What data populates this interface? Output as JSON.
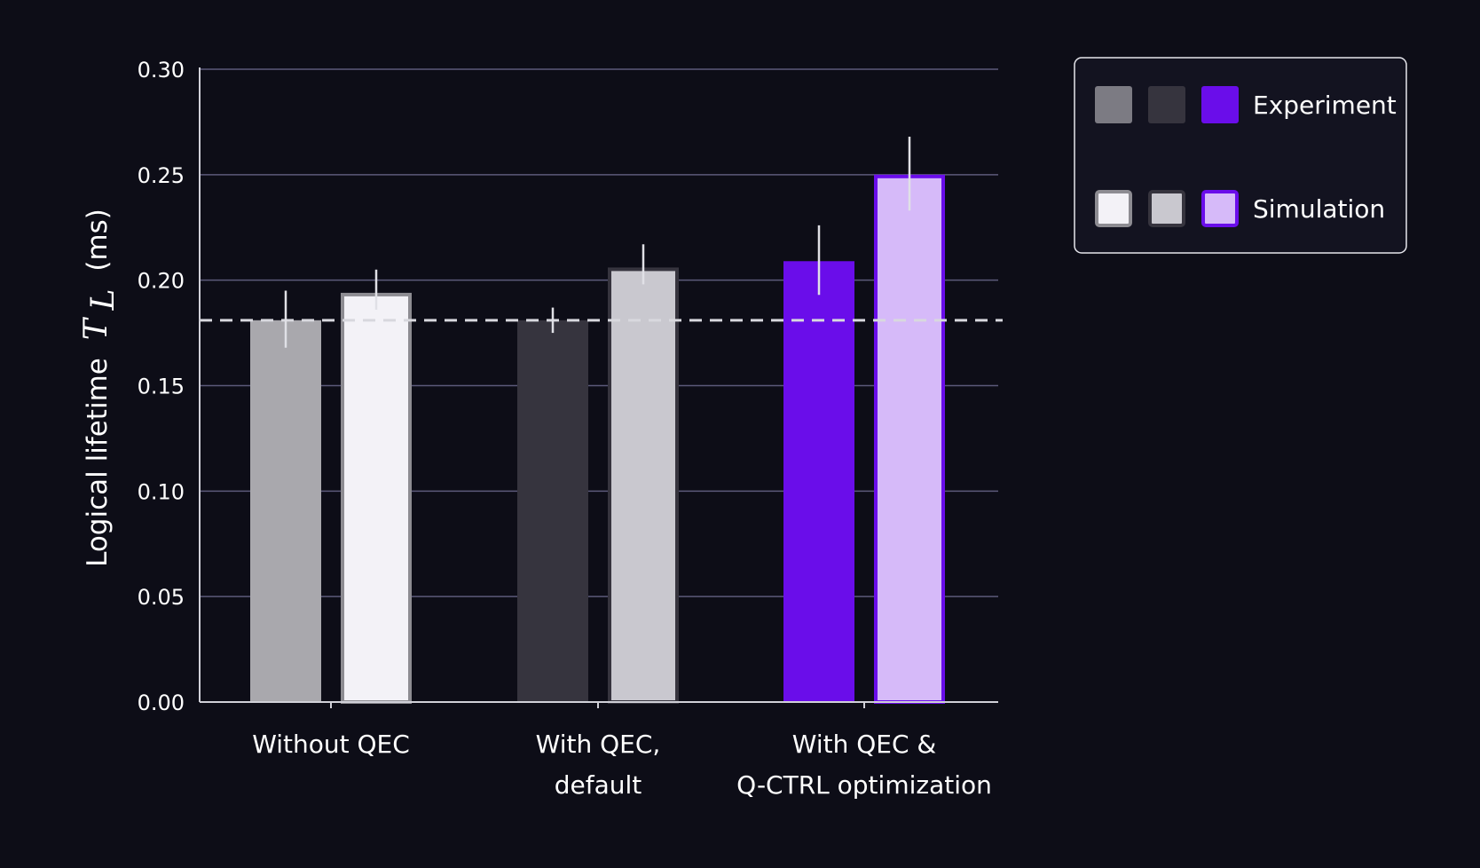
{
  "chart_data": {
    "type": "bar",
    "ylabel": {
      "prefix": "Logical lifetime",
      "symbol": "T",
      "subscript": "L",
      "unit": "(ms)"
    },
    "ylim": [
      0,
      0.3
    ],
    "yticks": [
      "0.00",
      "0.05",
      "0.10",
      "0.15",
      "0.20",
      "0.25",
      "0.30"
    ],
    "grid": true,
    "reference_line": 0.181,
    "categories": [
      [
        "Without QEC"
      ],
      [
        "With QEC,",
        "default"
      ],
      [
        "With QEC &",
        "Q-CTRL optimization"
      ]
    ],
    "series": [
      {
        "name": "Experiment",
        "values": [
          0.181,
          0.181,
          0.209
        ],
        "errors": [
          [
            0.168,
            0.195
          ],
          [
            0.175,
            0.187
          ],
          [
            0.193,
            0.226
          ]
        ],
        "fill_colors": [
          "#a9a8ad",
          "#36343e",
          "#6a0dea"
        ],
        "edge_colors": [
          "#a9a8ad",
          "#36343e",
          "#6a0dea"
        ]
      },
      {
        "name": "Simulation",
        "values": [
          0.194,
          0.206,
          0.25
        ],
        "errors": [
          [
            0.186,
            0.205
          ],
          [
            0.198,
            0.217
          ],
          [
            0.233,
            0.268
          ]
        ],
        "fill_colors": [
          "#f3f2f7",
          "#c9c8cf",
          "#d6baf9"
        ],
        "edge_colors": [
          "#8d8c92",
          "#36343e",
          "#6a0dea"
        ]
      }
    ],
    "legend": {
      "position": "top-right",
      "entries": [
        {
          "label": "Experiment",
          "swatches": [
            {
              "fill": "#7c7b83",
              "edge": "#7c7b83"
            },
            {
              "fill": "#36343e",
              "edge": "#36343e"
            },
            {
              "fill": "#6a0dea",
              "edge": "#6a0dea"
            }
          ]
        },
        {
          "label": "Simulation",
          "swatches": [
            {
              "fill": "#f3f2f7",
              "edge": "#8d8c92"
            },
            {
              "fill": "#c9c8cf",
              "edge": "#36343e"
            },
            {
              "fill": "#d6baf9",
              "edge": "#6a0dea"
            }
          ]
        }
      ]
    },
    "colors": {
      "background": "#0d0d17",
      "grid": "#5c5a7a",
      "axis": "#d0d0d8",
      "errorbar": "#e0e0e6",
      "reference": "#d8d8de",
      "legend_border": "#e6e6ec",
      "legend_fill": "#131320"
    }
  }
}
